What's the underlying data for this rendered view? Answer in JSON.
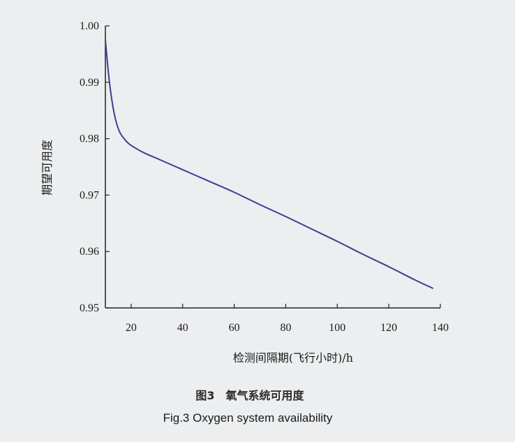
{
  "chart_data": {
    "type": "line",
    "xlabel": "检测间隔期(飞行小时)/h",
    "ylabel": "期望可用度",
    "xlim": [
      10,
      140
    ],
    "ylim": [
      0.95,
      1.0
    ],
    "x_ticks": [
      20,
      40,
      60,
      80,
      100,
      120,
      140
    ],
    "y_ticks": [
      "0.95",
      "0.96",
      "0.97",
      "0.98",
      "0.99",
      "1.00"
    ],
    "grid": false,
    "color": "#3b3f8f",
    "series": [
      {
        "x": [
          10,
          11,
          12,
          13,
          14,
          15,
          16,
          18,
          20,
          25,
          30,
          40,
          50,
          60,
          70,
          80,
          90,
          100,
          110,
          120,
          130,
          137
        ],
        "y": [
          0.9975,
          0.9925,
          0.9885,
          0.9855,
          0.9833,
          0.9818,
          0.9808,
          0.9796,
          0.9788,
          0.9775,
          0.9765,
          0.9745,
          0.9725,
          0.9705,
          0.9683,
          0.9662,
          0.964,
          0.9618,
          0.9595,
          0.9573,
          0.955,
          0.9535
        ]
      }
    ]
  },
  "caption": {
    "cn": "图3　氧气系统可用度",
    "en": "Fig.3   Oxygen system availability"
  }
}
